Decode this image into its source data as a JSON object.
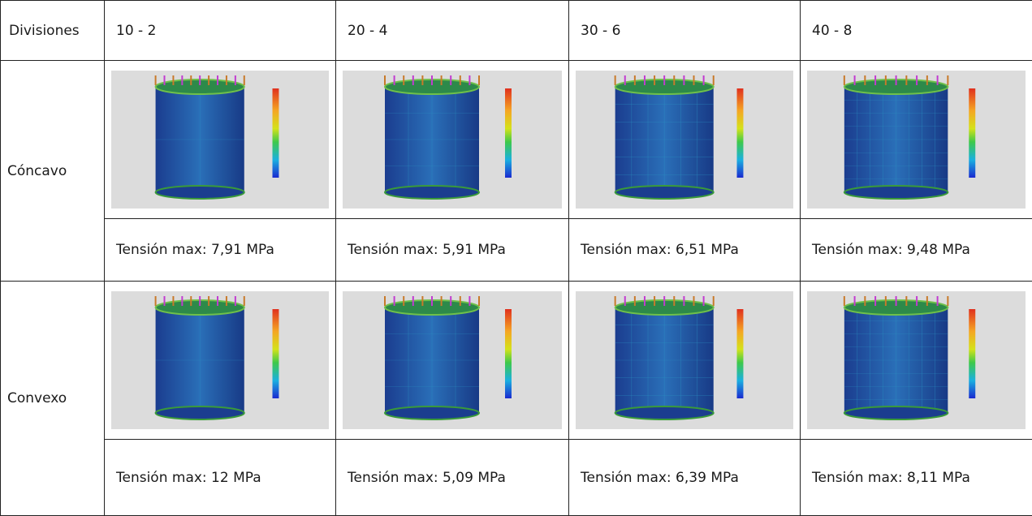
{
  "table": {
    "header": [
      "Divisiones",
      "10 - 2",
      "20 - 4",
      "30 - 6",
      "40 - 8"
    ],
    "rows": [
      {
        "label": "Cóncavo",
        "results": [
          "Tensión max: 7,91 MPa",
          "Tensión max: 5,91 MPa",
          "Tensión max: 6,51 MPa",
          "Tensión max: 9,48 MPa"
        ]
      },
      {
        "label": "Convexo",
        "results": [
          "Tensión max: 12 MPa",
          "Tensión max: 5,09 MPa",
          "Tensión max: 6,39 MPa",
          "Tensión max: 8,11 MPa"
        ]
      }
    ]
  }
}
